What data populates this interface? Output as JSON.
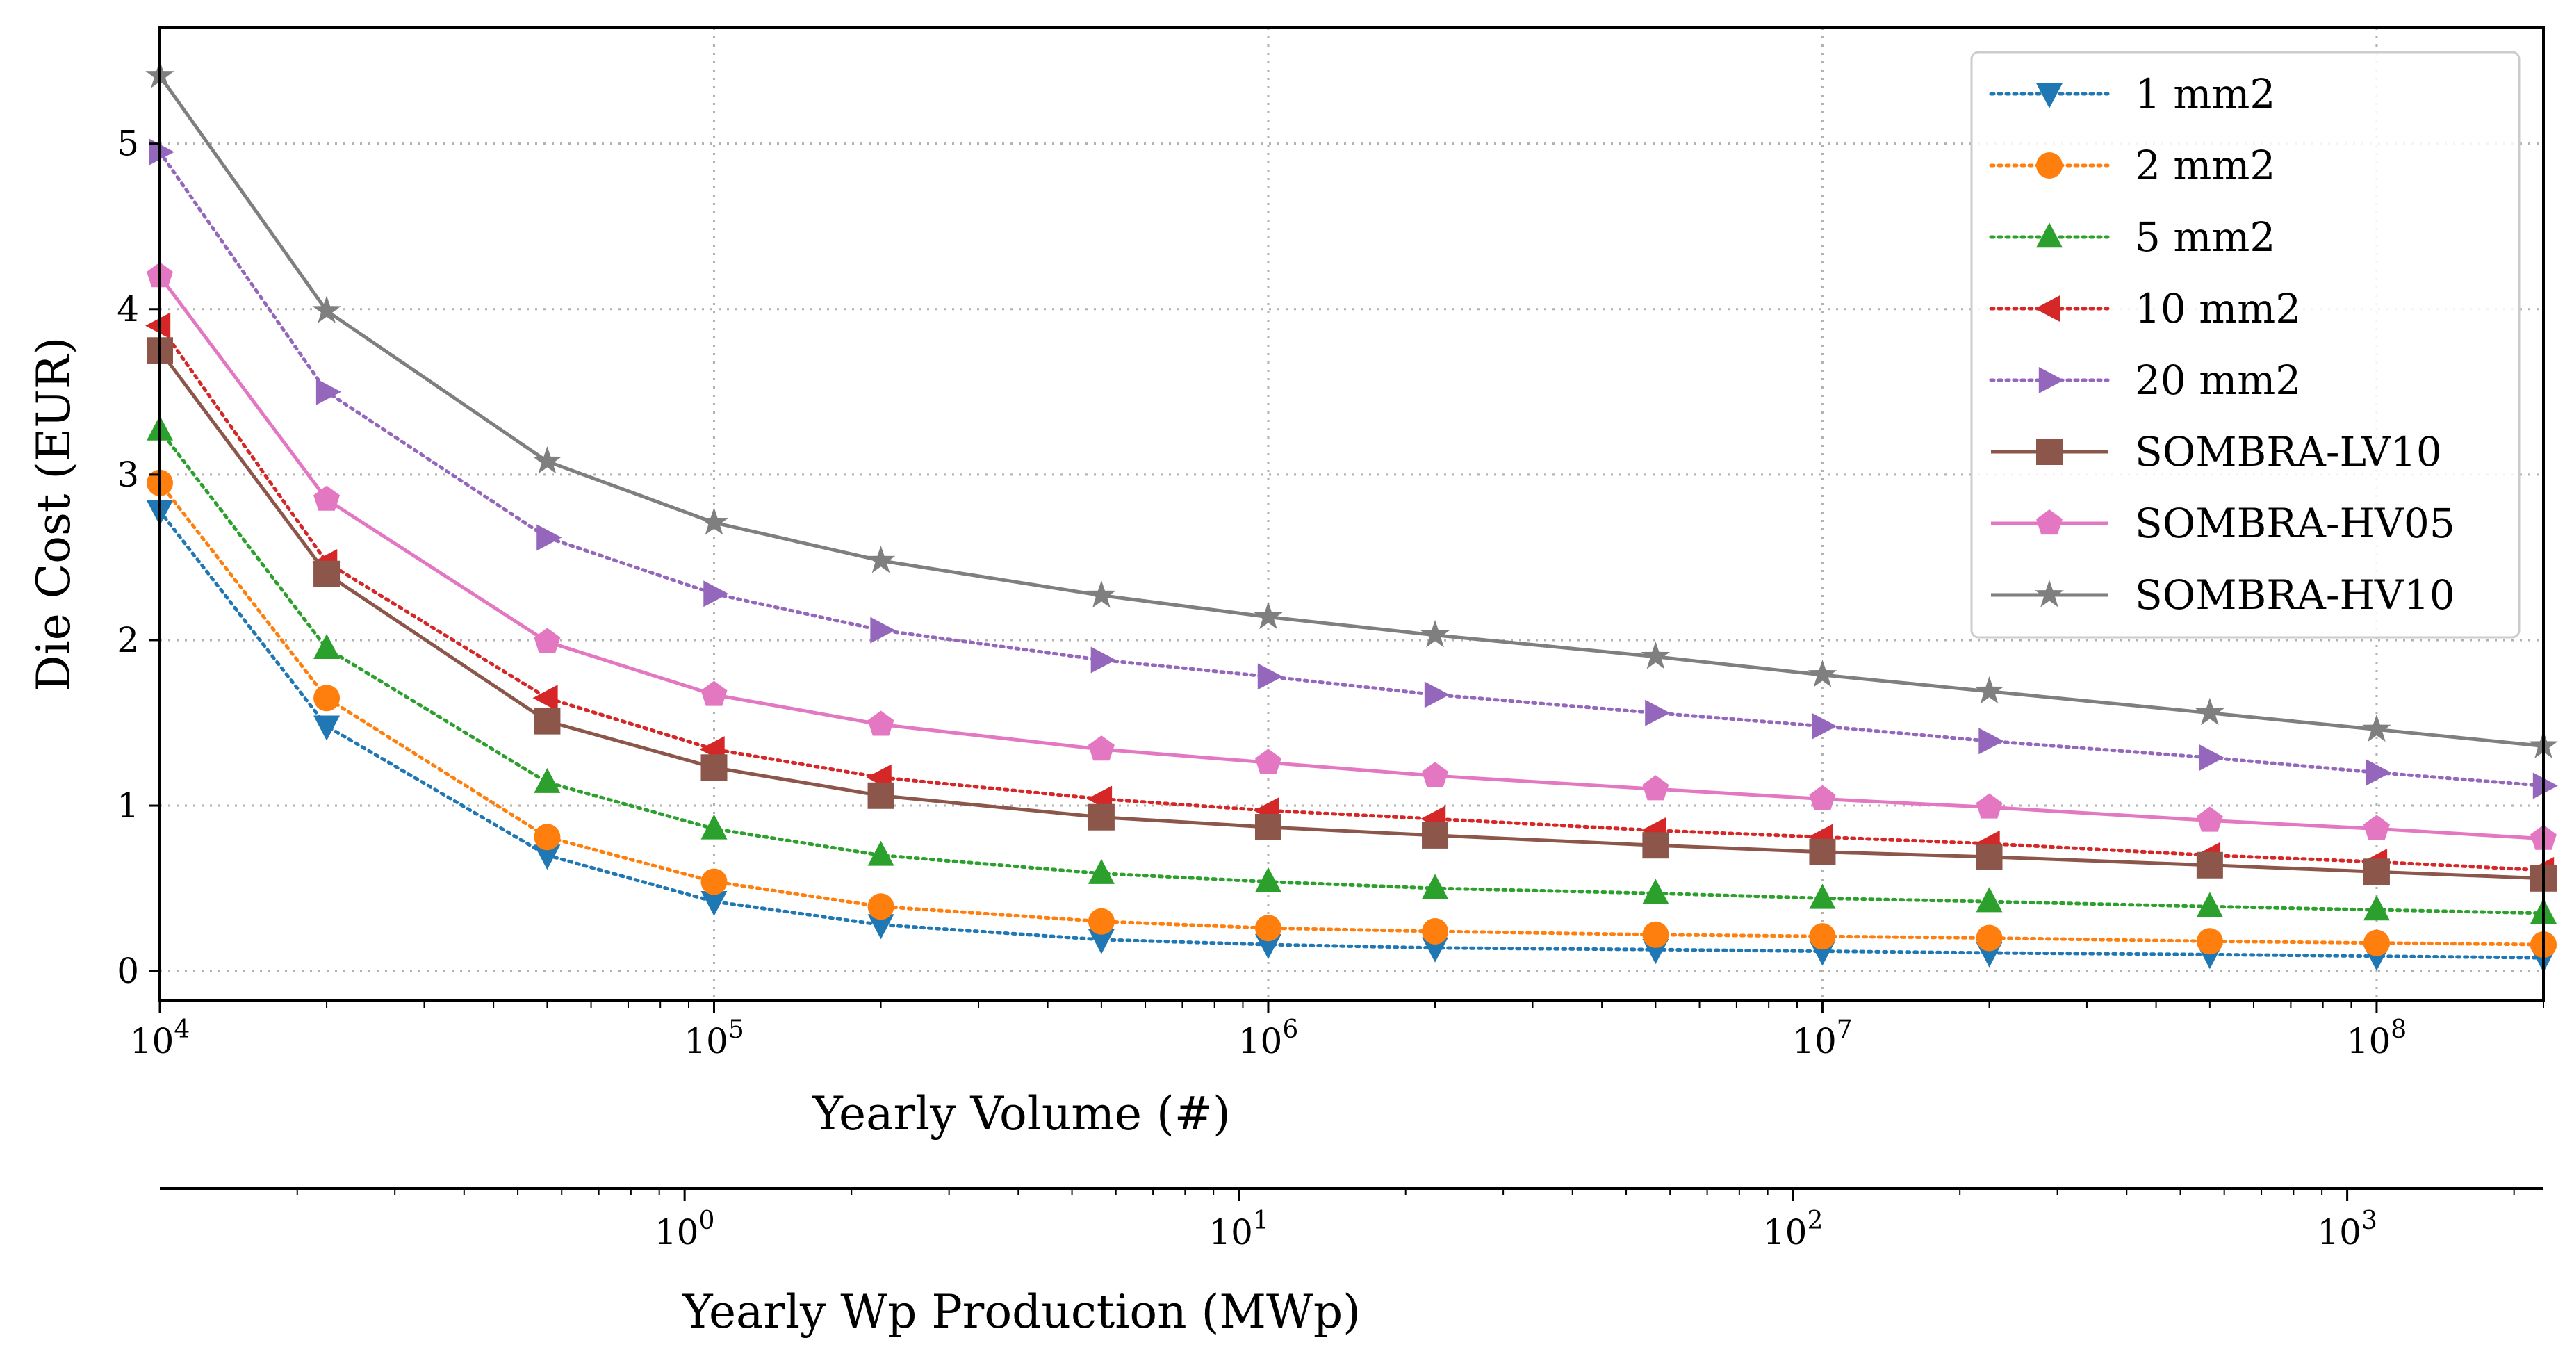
{
  "chart_data": {
    "type": "line",
    "title": "",
    "xlabel": "Yearly Volume (#)",
    "ylabel": "Die Cost (EUR)",
    "secondary_xlabel": "Yearly Wp Production (MWp)",
    "xscale": "log",
    "xlim": [
      10000,
      200000000
    ],
    "ylim": [
      -0.18,
      5.7
    ],
    "secondary_xlim": [
      0.113,
      2260
    ],
    "grid": true,
    "legend_position": "top-right",
    "xticks": [
      {
        "value": 10000,
        "base": "10",
        "exp": "4"
      },
      {
        "value": 100000,
        "base": "10",
        "exp": "5"
      },
      {
        "value": 1000000,
        "base": "10",
        "exp": "6"
      },
      {
        "value": 10000000,
        "base": "10",
        "exp": "7"
      },
      {
        "value": 100000000,
        "base": "10",
        "exp": "8"
      }
    ],
    "yticks": [
      {
        "value": 0,
        "label": "0"
      },
      {
        "value": 1,
        "label": "1"
      },
      {
        "value": 2,
        "label": "2"
      },
      {
        "value": 3,
        "label": "3"
      },
      {
        "value": 4,
        "label": "4"
      },
      {
        "value": 5,
        "label": "5"
      }
    ],
    "secondary_xticks": [
      {
        "value": 1,
        "base": "10",
        "exp": "0"
      },
      {
        "value": 10,
        "base": "10",
        "exp": "1"
      },
      {
        "value": 100,
        "base": "10",
        "exp": "2"
      },
      {
        "value": 1000,
        "base": "10",
        "exp": "3"
      }
    ],
    "x": [
      10000,
      20000,
      50000,
      100000,
      200000,
      500000,
      1000000,
      2000000,
      5000000,
      10000000,
      20000000,
      50000000,
      100000000,
      200000000
    ],
    "series": [
      {
        "name": "1 mm2",
        "color": "#1f77b4",
        "marker": "triangle-down",
        "linestyle": "dotted",
        "values": [
          2.78,
          1.48,
          0.7,
          0.42,
          0.28,
          0.19,
          0.16,
          0.14,
          0.13,
          0.12,
          0.11,
          0.1,
          0.09,
          0.08
        ]
      },
      {
        "name": "2 mm2",
        "color": "#ff7f0e",
        "marker": "circle",
        "linestyle": "dotted",
        "values": [
          2.95,
          1.65,
          0.81,
          0.54,
          0.39,
          0.3,
          0.26,
          0.24,
          0.22,
          0.21,
          0.2,
          0.18,
          0.17,
          0.16
        ]
      },
      {
        "name": "5 mm2",
        "color": "#2ca02c",
        "marker": "triangle-up",
        "linestyle": "dotted",
        "values": [
          3.27,
          1.95,
          1.14,
          0.86,
          0.7,
          0.59,
          0.54,
          0.5,
          0.47,
          0.44,
          0.42,
          0.39,
          0.37,
          0.35
        ]
      },
      {
        "name": "10 mm2",
        "color": "#d62728",
        "marker": "triangle-left",
        "linestyle": "dotted",
        "values": [
          3.9,
          2.47,
          1.65,
          1.34,
          1.17,
          1.04,
          0.97,
          0.92,
          0.85,
          0.81,
          0.77,
          0.7,
          0.66,
          0.61
        ]
      },
      {
        "name": "20 mm2",
        "color": "#9467bd",
        "marker": "triangle-right",
        "linestyle": "dotted",
        "values": [
          4.95,
          3.5,
          2.62,
          2.28,
          2.06,
          1.88,
          1.78,
          1.67,
          1.56,
          1.48,
          1.39,
          1.29,
          1.2,
          1.12
        ]
      },
      {
        "name": "SOMBRA-LV10",
        "color": "#8c564b",
        "marker": "square",
        "linestyle": "solid",
        "values": [
          3.75,
          2.4,
          1.51,
          1.23,
          1.06,
          0.93,
          0.87,
          0.82,
          0.76,
          0.72,
          0.69,
          0.64,
          0.6,
          0.56
        ]
      },
      {
        "name": "SOMBRA-HV05",
        "color": "#e377c2",
        "marker": "pentagon",
        "linestyle": "solid",
        "values": [
          4.2,
          2.85,
          1.99,
          1.67,
          1.49,
          1.34,
          1.26,
          1.18,
          1.1,
          1.04,
          0.99,
          0.91,
          0.86,
          0.8
        ]
      },
      {
        "name": "SOMBRA-HV10",
        "color": "#7f7f7f",
        "marker": "star",
        "linestyle": "solid",
        "values": [
          5.41,
          3.99,
          3.08,
          2.71,
          2.48,
          2.27,
          2.14,
          2.03,
          1.9,
          1.79,
          1.69,
          1.56,
          1.46,
          1.36
        ]
      }
    ]
  }
}
